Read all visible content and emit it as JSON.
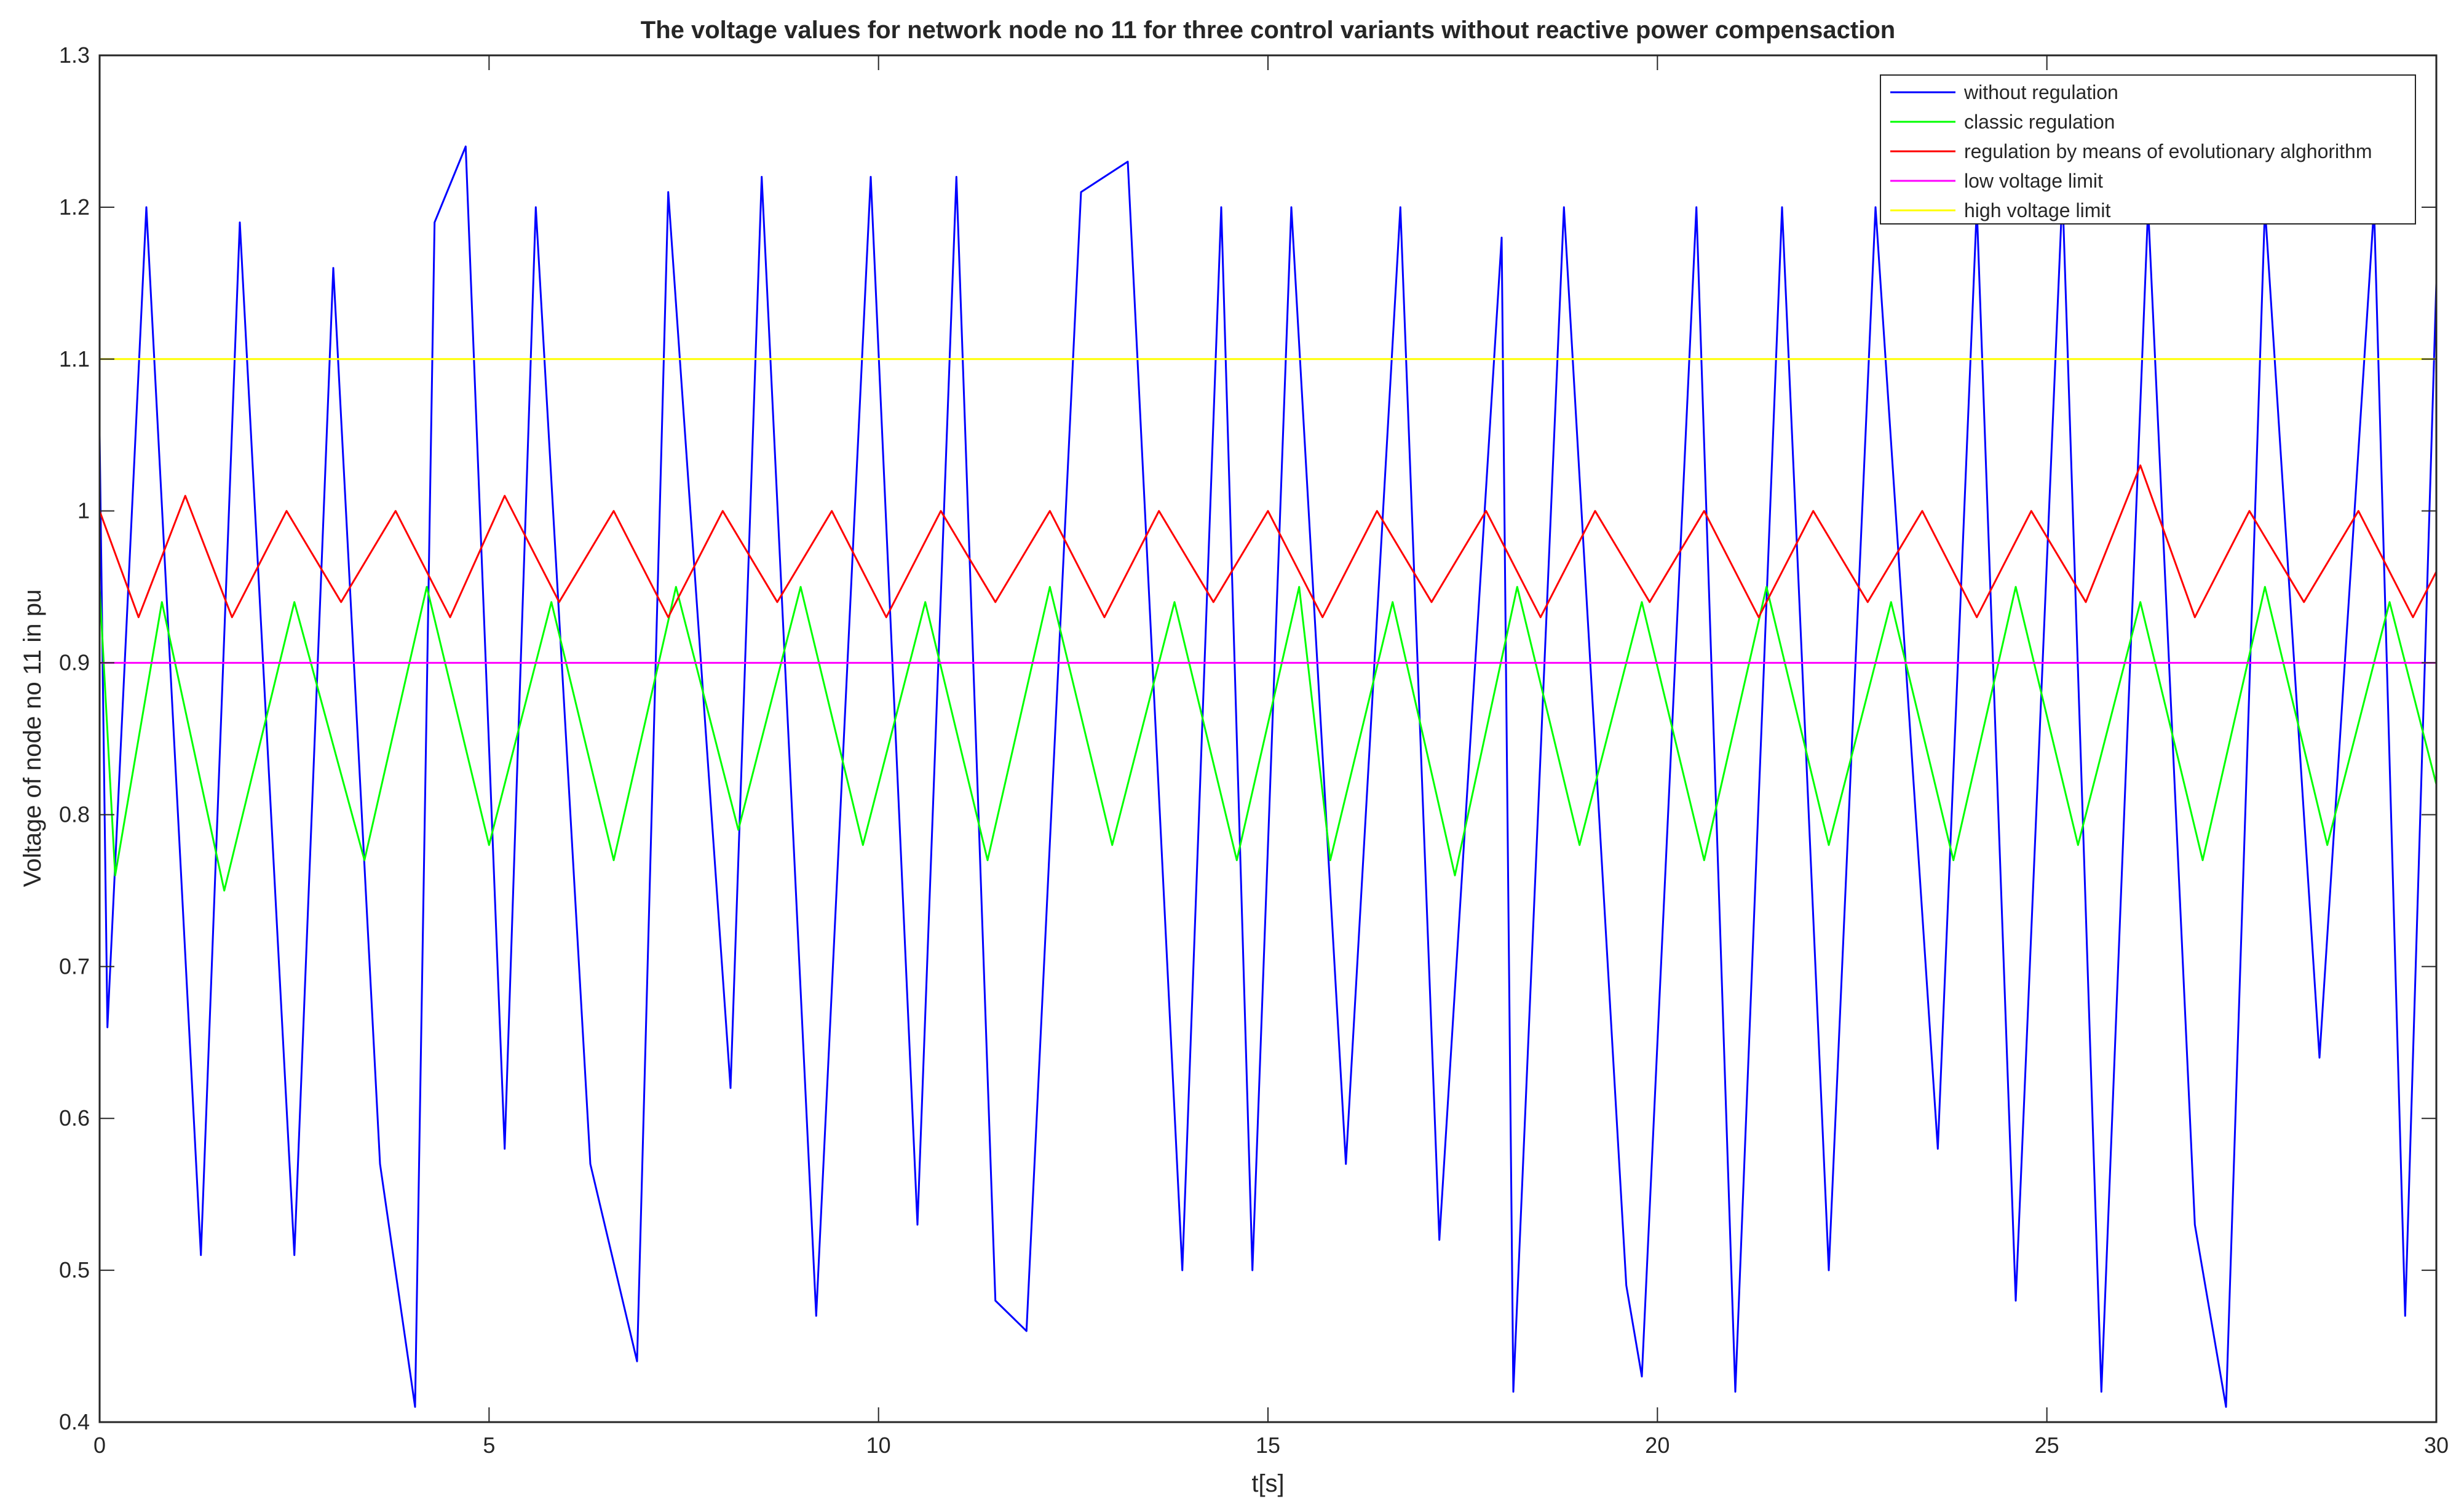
{
  "chart_data": {
    "type": "line",
    "title": "The voltage values for network node no 11 for three control variants without reactive power compensaction",
    "xlabel": "t[s]",
    "ylabel": "Voltage of node no 11 in pu",
    "xlim": [
      0,
      30
    ],
    "ylim": [
      0.4,
      1.3
    ],
    "xticks": [
      "0",
      "5",
      "10",
      "15",
      "20",
      "25",
      "30"
    ],
    "yticks": [
      "0.4",
      "0.5",
      "0.6",
      "0.7",
      "0.8",
      "0.9",
      "1",
      "1.1",
      "1.2",
      "1.3"
    ],
    "grid": false,
    "legend_position": "top-right",
    "series": [
      {
        "name": "without regulation",
        "color": "#0000ff",
        "x": [
          0,
          0.1,
          0.6,
          1.3,
          1.8,
          2.5,
          3.0,
          3.6,
          4.05,
          4.3,
          4.7,
          5.2,
          5.6,
          6.3,
          6.9,
          7.3,
          8.1,
          8.5,
          9.2,
          9.9,
          10.5,
          11.0,
          11.5,
          11.9,
          12.6,
          13.2,
          13.9,
          14.4,
          14.8,
          15.3,
          16.0,
          16.7,
          17.2,
          18.0,
          18.15,
          18.8,
          19.6,
          19.8,
          20.5,
          21.0,
          21.6,
          22.2,
          22.8,
          23.6,
          24.1,
          24.6,
          25.2,
          25.7,
          26.3,
          26.9,
          27.3,
          27.8,
          28.5,
          29.2,
          29.6,
          30
        ],
        "y": [
          1.05,
          0.66,
          1.2,
          0.51,
          1.19,
          0.51,
          1.16,
          0.57,
          0.41,
          1.19,
          1.24,
          0.58,
          1.2,
          0.57,
          0.44,
          1.21,
          0.62,
          1.22,
          0.47,
          1.22,
          0.53,
          1.22,
          0.48,
          0.46,
          1.21,
          1.23,
          0.5,
          1.2,
          0.5,
          1.2,
          0.57,
          1.2,
          0.52,
          1.18,
          0.42,
          1.2,
          0.49,
          0.43,
          1.2,
          0.42,
          1.2,
          0.5,
          1.2,
          0.58,
          1.2,
          0.48,
          1.21,
          0.42,
          1.2,
          0.53,
          0.41,
          1.2,
          0.64,
          1.2,
          0.47,
          1.15
        ]
      },
      {
        "name": "classic regulation",
        "color": "#00ff00",
        "x": [
          0,
          0.2,
          0.8,
          1.6,
          2.5,
          3.4,
          4.2,
          5.0,
          5.8,
          6.6,
          7.4,
          8.2,
          9.0,
          9.8,
          10.6,
          11.4,
          12.2,
          13.0,
          13.8,
          14.6,
          15.4,
          15.8,
          16.6,
          17.4,
          18.2,
          19.0,
          19.8,
          20.6,
          21.4,
          22.2,
          23.0,
          23.8,
          24.6,
          25.4,
          26.2,
          27.0,
          27.8,
          28.6,
          29.4,
          30
        ],
        "y": [
          0.95,
          0.76,
          0.94,
          0.75,
          0.94,
          0.77,
          0.95,
          0.78,
          0.94,
          0.77,
          0.95,
          0.79,
          0.95,
          0.78,
          0.94,
          0.77,
          0.95,
          0.78,
          0.94,
          0.77,
          0.95,
          0.77,
          0.94,
          0.76,
          0.95,
          0.78,
          0.94,
          0.77,
          0.95,
          0.78,
          0.94,
          0.77,
          0.95,
          0.78,
          0.94,
          0.77,
          0.95,
          0.78,
          0.94,
          0.82
        ]
      },
      {
        "name": "regulation by means of evolutionary alghorithm",
        "color": "#ff0000",
        "x": [
          0,
          0.5,
          1.1,
          1.7,
          2.4,
          3.1,
          3.8,
          4.5,
          5.2,
          5.9,
          6.6,
          7.3,
          8.0,
          8.7,
          9.4,
          10.1,
          10.8,
          11.5,
          12.2,
          12.9,
          13.6,
          14.3,
          15.0,
          15.7,
          16.4,
          17.1,
          17.8,
          18.5,
          19.2,
          19.9,
          20.6,
          21.3,
          22.0,
          22.7,
          23.4,
          24.1,
          24.8,
          25.5,
          26.2,
          26.9,
          27.6,
          28.3,
          29.0,
          29.7,
          30
        ],
        "y": [
          1.0,
          0.93,
          1.01,
          0.93,
          1.0,
          0.94,
          1.0,
          0.93,
          1.01,
          0.94,
          1.0,
          0.93,
          1.0,
          0.94,
          1.0,
          0.93,
          1.0,
          0.94,
          1.0,
          0.93,
          1.0,
          0.94,
          1.0,
          0.93,
          1.0,
          0.94,
          1.0,
          0.93,
          1.0,
          0.94,
          1.0,
          0.93,
          1.0,
          0.94,
          1.0,
          0.93,
          1.0,
          0.94,
          1.03,
          0.93,
          1.0,
          0.94,
          1.0,
          0.93,
          0.96
        ]
      },
      {
        "name": "low voltage limit",
        "color": "#ff00ff",
        "x": [
          0,
          30
        ],
        "y": [
          0.9,
          0.9
        ]
      },
      {
        "name": "high voltage limit",
        "color": "#ffff00",
        "x": [
          0,
          30
        ],
        "y": [
          1.1,
          1.1
        ]
      }
    ]
  }
}
